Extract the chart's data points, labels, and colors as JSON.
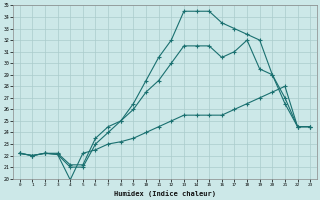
{
  "xlabel": "Humidex (Indice chaleur)",
  "ylabel": "",
  "bg_color": "#cce8e8",
  "grid_color": "#aacccc",
  "line_color": "#1a7070",
  "xlim": [
    -0.5,
    23.5
  ],
  "ylim": [
    20,
    35
  ],
  "xticks": [
    0,
    1,
    2,
    3,
    4,
    5,
    6,
    7,
    8,
    9,
    10,
    11,
    12,
    13,
    14,
    15,
    16,
    17,
    18,
    19,
    20,
    21,
    22,
    23
  ],
  "yticks": [
    20,
    21,
    22,
    23,
    24,
    25,
    26,
    27,
    28,
    29,
    30,
    31,
    32,
    33,
    34,
    35
  ],
  "line1_x": [
    0,
    1,
    2,
    3,
    4,
    5,
    6,
    7,
    8,
    9,
    10,
    11,
    12,
    13,
    14,
    15,
    16,
    17,
    18,
    19,
    20,
    21,
    22,
    23
  ],
  "line1_y": [
    22.2,
    22.0,
    22.2,
    22.1,
    19.9,
    22.2,
    22.5,
    23.0,
    23.2,
    23.5,
    24.0,
    24.5,
    25.0,
    25.5,
    25.5,
    25.5,
    25.5,
    26.0,
    26.5,
    27.0,
    27.5,
    28.0,
    24.5,
    24.5
  ],
  "line2_x": [
    0,
    1,
    2,
    3,
    4,
    5,
    6,
    7,
    8,
    9,
    10,
    11,
    12,
    13,
    14,
    15,
    16,
    17,
    18,
    19,
    20,
    21,
    22,
    23
  ],
  "line2_y": [
    22.2,
    22.0,
    22.2,
    22.2,
    21.2,
    21.2,
    23.5,
    24.5,
    25.0,
    26.0,
    27.5,
    28.5,
    30.0,
    31.5,
    31.5,
    31.5,
    30.5,
    31.0,
    32.0,
    29.5,
    29.0,
    27.0,
    24.5,
    24.5
  ],
  "line3_x": [
    0,
    1,
    2,
    3,
    4,
    5,
    6,
    7,
    8,
    9,
    10,
    11,
    12,
    13,
    14,
    15,
    16,
    17,
    18,
    19,
    20,
    21,
    22,
    23
  ],
  "line3_y": [
    22.2,
    22.0,
    22.2,
    22.1,
    21.0,
    21.0,
    23.0,
    24.0,
    25.0,
    26.5,
    28.5,
    30.5,
    32.0,
    34.5,
    34.5,
    34.5,
    33.5,
    33.0,
    32.5,
    32.0,
    29.0,
    26.5,
    24.5,
    24.5
  ]
}
